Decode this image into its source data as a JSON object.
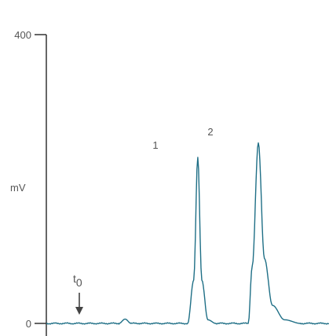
{
  "chart_data": {
    "type": "line",
    "title": "",
    "xlabel": "",
    "ylabel": "mV",
    "ylim": [
      0,
      400
    ],
    "yticks": [
      {
        "value": 0,
        "label": "0"
      },
      {
        "value": 400,
        "label": "400"
      }
    ],
    "grid": false,
    "line_color": "#1f6f86",
    "series": [
      {
        "x": [
          0,
          1.8,
          1.95,
          2.1,
          2.3,
          3.5,
          3.65,
          3.75,
          3.85,
          4.0,
          4.2,
          5.0,
          5.1,
          5.25,
          5.4,
          5.6,
          5.9,
          6.3,
          7.0
        ],
        "y": [
          0,
          0,
          6,
          0,
          0,
          0,
          60,
          230,
          60,
          5,
          0,
          0,
          80,
          250,
          90,
          25,
          5,
          0,
          0
        ]
      }
    ],
    "annotations": [
      {
        "label": "1",
        "x": 3.75,
        "y": 230
      },
      {
        "label": "2",
        "x": 5.25,
        "y": 250
      }
    ],
    "marker": {
      "base": "t",
      "sub": "0",
      "x": 1.95,
      "y": 6
    }
  }
}
